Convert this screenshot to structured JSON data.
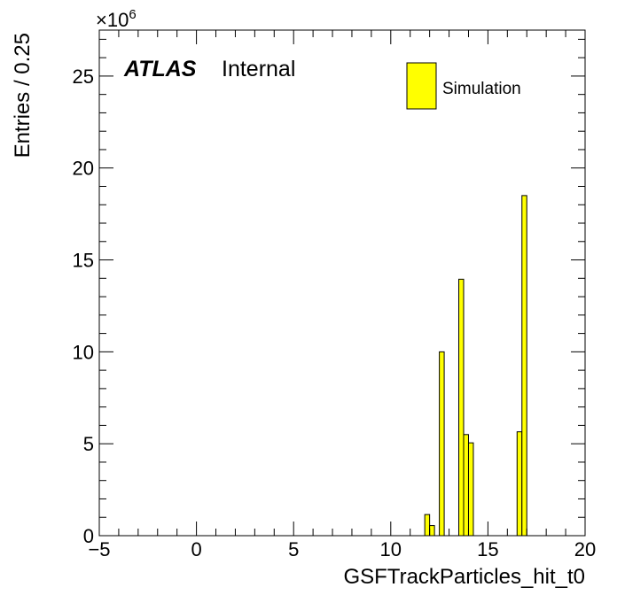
{
  "chart_data": {
    "type": "bar",
    "xlabel": "GSFTrackParticles_hit_t0",
    "ylabel": "Entries / 0.25",
    "y_multiplier": "×10",
    "y_multiplier_exp": "6",
    "xlim": [
      -5,
      20
    ],
    "ylim": [
      0,
      27.5
    ],
    "bin_width": 0.25,
    "x_ticks": [
      -5,
      0,
      5,
      10,
      15,
      20
    ],
    "x_tick_labels": [
      "−5",
      "0",
      "5",
      "10",
      "15",
      "20"
    ],
    "y_ticks": [
      0,
      5,
      10,
      15,
      20,
      25
    ],
    "y_tick_labels": [
      "0",
      "5",
      "10",
      "15",
      "20",
      "25"
    ],
    "atlas_label": "ATLAS",
    "atlas_sublabel": "Internal",
    "legend": {
      "label": "Simulation",
      "color": "#ffff00",
      "position": "top-right"
    },
    "bars_color": "#ffff00",
    "bins": [
      {
        "x": 11.75,
        "value": 1.15
      },
      {
        "x": 12.0,
        "value": 0.55
      },
      {
        "x": 12.5,
        "value": 10.0
      },
      {
        "x": 13.5,
        "value": 13.95
      },
      {
        "x": 13.75,
        "value": 5.5
      },
      {
        "x": 14.0,
        "value": 5.05
      },
      {
        "x": 16.5,
        "value": 5.65
      },
      {
        "x": 16.75,
        "value": 18.5
      }
    ]
  }
}
